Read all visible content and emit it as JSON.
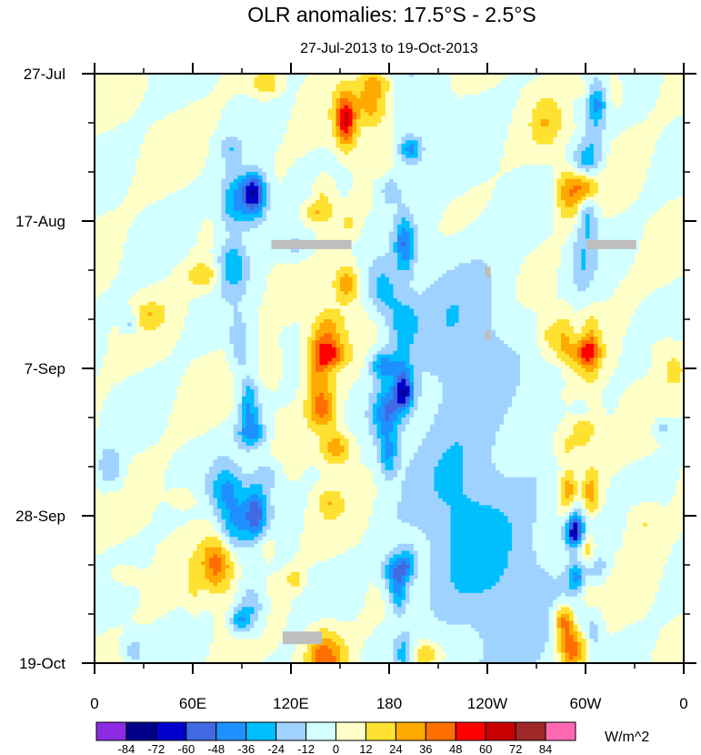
{
  "chart_data": {
    "type": "heatmap",
    "title": "OLR anomalies: 17.5°S - 2.5°S",
    "subtitle": "27-Jul-2013 to 19-Oct-2013",
    "xlabel": "",
    "ylabel": "",
    "x_ticks": [
      {
        "lon": 0,
        "label": "0"
      },
      {
        "lon": 60,
        "label": "60E"
      },
      {
        "lon": 120,
        "label": "120E"
      },
      {
        "lon": 180,
        "label": "180"
      },
      {
        "lon": 240,
        "label": "120W"
      },
      {
        "lon": 300,
        "label": "60W"
      },
      {
        "lon": 360,
        "label": "0"
      }
    ],
    "y_ticks": [
      {
        "day": 0,
        "label": "27-Jul"
      },
      {
        "day": 21,
        "label": "17-Aug"
      },
      {
        "day": 42,
        "label": "7-Sep"
      },
      {
        "day": 63,
        "label": "28-Sep"
      },
      {
        "day": 84,
        "label": "19-Oct"
      }
    ],
    "x_range": [
      0,
      360
    ],
    "y_range_days": [
      0,
      84
    ],
    "colorbar": {
      "units": "W/m^2",
      "levels": [
        -84,
        -72,
        -60,
        -48,
        -36,
        -24,
        -12,
        0,
        12,
        24,
        36,
        48,
        60,
        72,
        84
      ],
      "colors": [
        "#8a2be2",
        "#00008b",
        "#0000cd",
        "#4169e1",
        "#1e90ff",
        "#00bfff",
        "#a0d2ff",
        "#d2ffff",
        "#ffffc8",
        "#ffe132",
        "#ffaa00",
        "#ff6e00",
        "#ff0000",
        "#c80000",
        "#a02828",
        "#ff69b4"
      ]
    },
    "missing_color": "#bebebe",
    "background_color": "#ffffc8",
    "features": [
      {
        "kind": "band",
        "lon": 90,
        "value": -30,
        "note": "negative anomaly streaks near 90E"
      },
      {
        "kind": "band",
        "lon": 145,
        "value": 25,
        "note": "positive anomalies 140E-180"
      },
      {
        "kind": "band",
        "lon": 185,
        "value": -35,
        "note": "negative anomalies near dateline"
      },
      {
        "kind": "region",
        "lon_range": [
          190,
          280
        ],
        "value": -8,
        "note": "weak negative over east Pacific"
      },
      {
        "kind": "band",
        "lon": 300,
        "value": -30,
        "note": "negative streak near 60W"
      },
      {
        "kind": "band",
        "lon": 295,
        "value": 30,
        "note": "positive streak near 65W"
      },
      {
        "kind": "blob",
        "lon": 75,
        "day": 70,
        "value": 40,
        "note": "strong positive late Sep"
      },
      {
        "kind": "blob",
        "lon": 170,
        "day": 4,
        "value": 35,
        "note": "positive late Jul"
      }
    ],
    "missing_boxes": [
      {
        "lon": [
          108,
          157
        ],
        "day": [
          23.7,
          25
        ]
      },
      {
        "lon": [
          301,
          331
        ],
        "day": [
          23.7,
          25
        ]
      },
      {
        "lon": [
          238.5,
          242
        ],
        "day": [
          27.5,
          29
        ]
      },
      {
        "lon": [
          238.5,
          242
        ],
        "day": [
          36.5,
          38
        ]
      },
      {
        "lon": [
          115,
          139
        ],
        "day": [
          79.5,
          81.3
        ]
      }
    ]
  }
}
